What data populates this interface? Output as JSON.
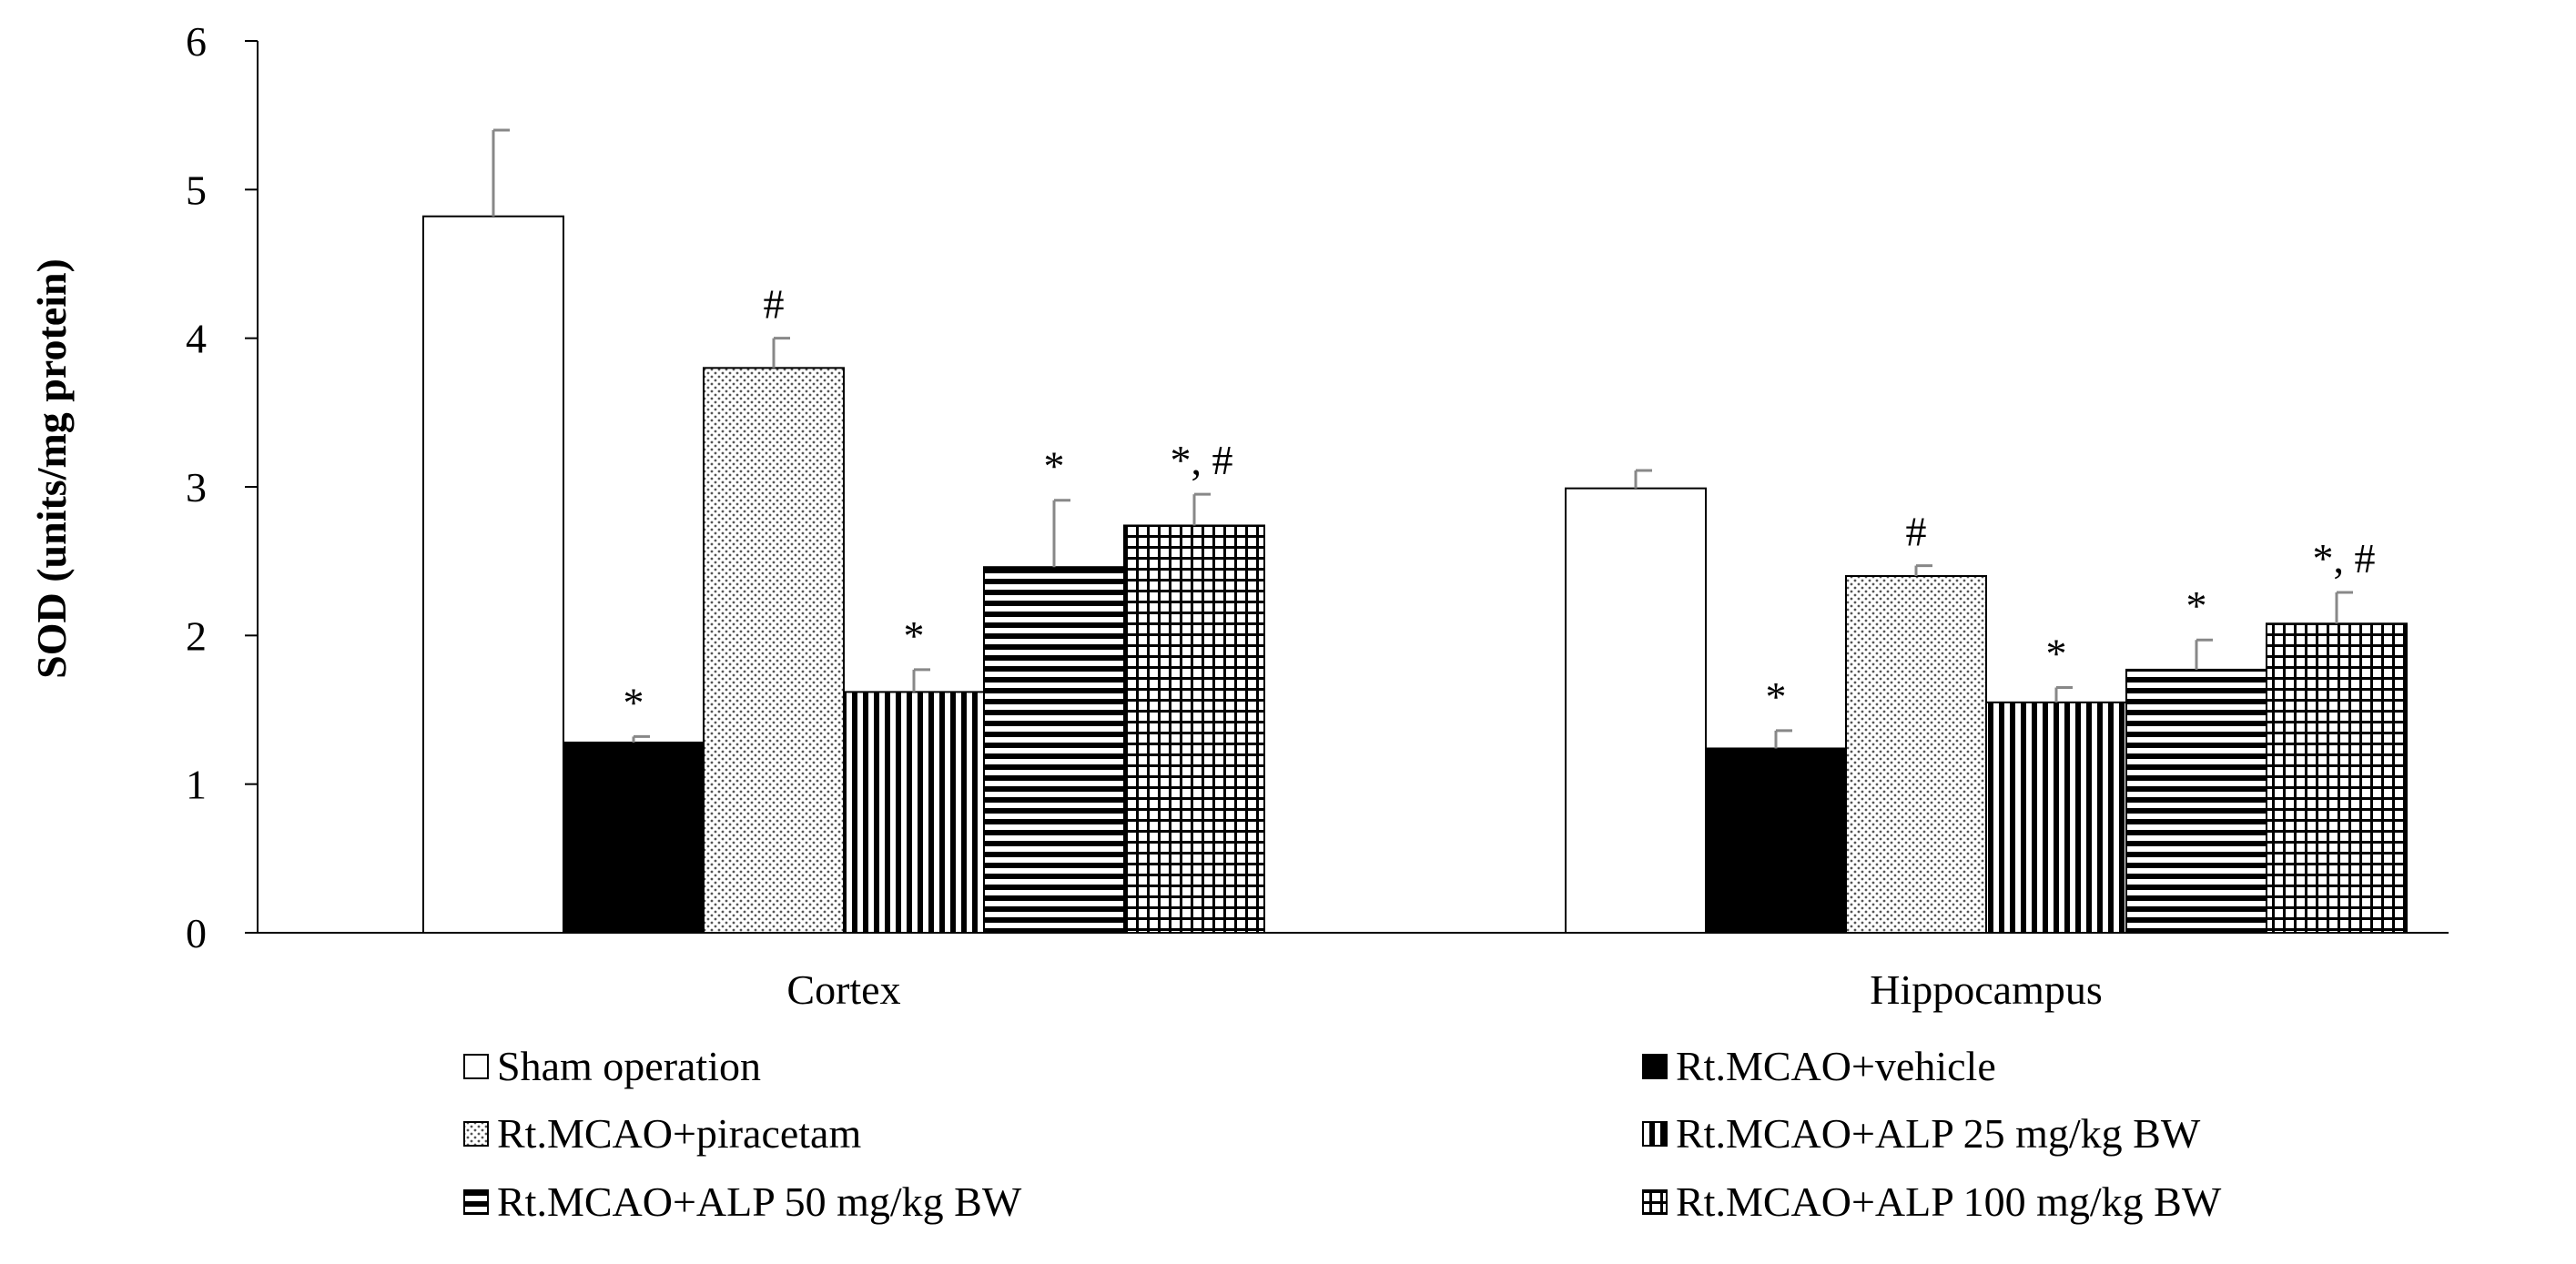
{
  "chart_data": {
    "type": "bar",
    "title": "",
    "xlabel": "",
    "ylabel": "SOD (units/mg protein)",
    "ylim": [
      0,
      6
    ],
    "yticks": [
      0,
      1,
      2,
      3,
      4,
      5,
      6
    ],
    "categories": [
      "Cortex",
      "Hippocampus"
    ],
    "series": [
      {
        "name": "Sham operation",
        "pattern": "white",
        "values": [
          4.82,
          2.99
        ],
        "errors": [
          0.58,
          0.12
        ],
        "annotations": [
          "",
          ""
        ]
      },
      {
        "name": "Rt.MCAO+vehicle",
        "pattern": "solid",
        "values": [
          1.28,
          1.24
        ],
        "errors": [
          0.04,
          0.12
        ],
        "annotations": [
          "*",
          "*"
        ]
      },
      {
        "name": "Rt.MCAO+piracetam",
        "pattern": "dots",
        "values": [
          3.8,
          2.4
        ],
        "errors": [
          0.2,
          0.07
        ],
        "annotations": [
          "#",
          "#"
        ]
      },
      {
        "name": "Rt.MCAO+ALP 25 mg/kg BW",
        "pattern": "vlines",
        "values": [
          1.62,
          1.55
        ],
        "errors": [
          0.15,
          0.1
        ],
        "annotations": [
          "*",
          "*"
        ]
      },
      {
        "name": "Rt.MCAO+ALP 50 mg/kg BW",
        "pattern": "hlines",
        "values": [
          2.46,
          1.77
        ],
        "errors": [
          0.45,
          0.2
        ],
        "annotations": [
          "*",
          "*"
        ]
      },
      {
        "name": "Rt.MCAO+ALP 100 mg/kg BW",
        "pattern": "grid",
        "values": [
          2.74,
          2.08
        ],
        "errors": [
          0.21,
          0.21
        ],
        "annotations": [
          "*, #",
          "*, #"
        ]
      }
    ],
    "legend_position": "bottom",
    "grid": false
  }
}
